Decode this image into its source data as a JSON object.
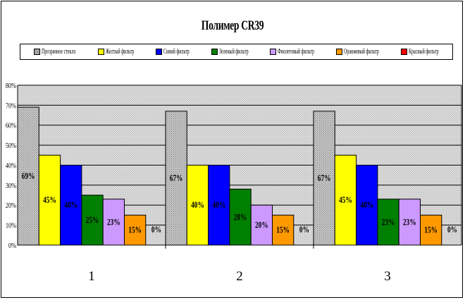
{
  "chart_data": {
    "type": "bar",
    "title": "Полимер CR39",
    "categories": [
      "1",
      "2",
      "3"
    ],
    "ylim": [
      0,
      80
    ],
    "ytick_labels": [
      "0%",
      "10%",
      "20%",
      "30%",
      "40%",
      "50%",
      "60%",
      "70%",
      "80%"
    ],
    "grid": true,
    "legend_position": "top",
    "series": [
      {
        "name": "Прозрачное стекло",
        "color": "#808080",
        "pattern": "dots",
        "values": [
          69,
          67,
          67
        ],
        "labels": [
          "69%",
          "67%",
          "67%"
        ]
      },
      {
        "name": "Желтый фильтр",
        "color": "#FFFF00",
        "values": [
          45,
          40,
          45
        ],
        "labels": [
          "45%",
          "40%",
          "45%"
        ]
      },
      {
        "name": "Синий фильтр",
        "color": "#0000FF",
        "values": [
          40,
          40,
          40
        ],
        "labels": [
          "40%",
          "40%",
          "40%"
        ]
      },
      {
        "name": "Зеленый фильтр",
        "color": "#008000",
        "values": [
          25,
          28,
          23
        ],
        "labels": [
          "25%",
          "28%",
          "23%"
        ]
      },
      {
        "name": "Фиолетовый фильтр",
        "color": "#CC99FF",
        "values": [
          23,
          20,
          23
        ],
        "labels": [
          "23%",
          "20%",
          "23%"
        ]
      },
      {
        "name": "Оранжевый фильтр",
        "color": "#FF9900",
        "values": [
          15,
          15,
          15
        ],
        "labels": [
          "15%",
          "15%",
          "15%"
        ]
      },
      {
        "name": "Красный фильтр",
        "color": "#FF0000",
        "values": [
          0,
          0,
          0
        ],
        "labels": [
          "0%",
          "0%",
          "0%"
        ]
      }
    ]
  }
}
